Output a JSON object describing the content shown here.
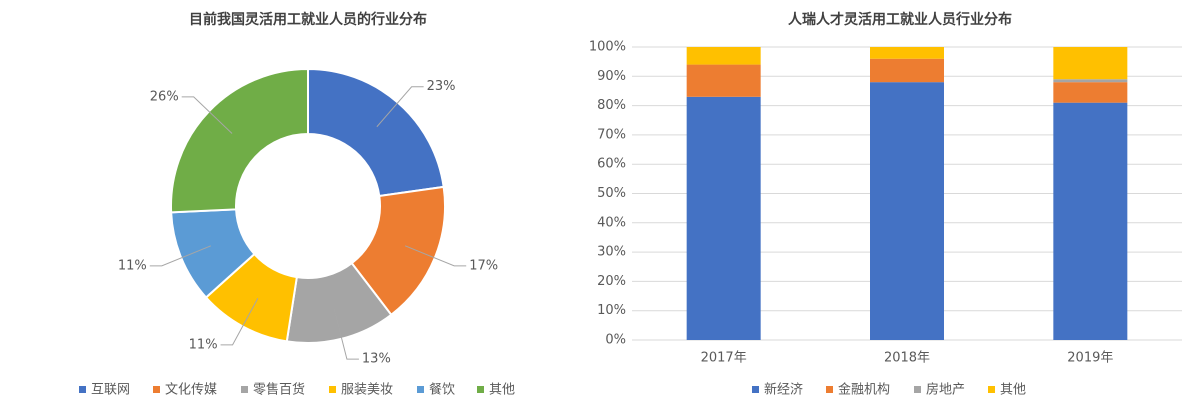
{
  "chart_data": [
    {
      "type": "pie",
      "title": "目前我国灵活用工就业人员的行业分布",
      "categories": [
        "互联网",
        "文化传媒",
        "零售百货",
        "服装美妆",
        "餐饮",
        "其他"
      ],
      "values": [
        23,
        17,
        13,
        11,
        11,
        26
      ],
      "value_labels": [
        "23%",
        "17%",
        "13%",
        "11%",
        "11%",
        "26%"
      ],
      "colors": [
        "#4472c4",
        "#ed7d31",
        "#a5a5a5",
        "#ffc000",
        "#5b9bd5",
        "#70ad47"
      ],
      "donut": true,
      "legend": "bottom"
    },
    {
      "type": "stacked-bar",
      "title": "人瑞人才灵活用工就业人员行业分布",
      "categories": [
        "2017年",
        "2018年",
        "2019年"
      ],
      "series": [
        {
          "name": "新经济",
          "color": "#4472c4",
          "values": [
            83,
            88,
            81
          ]
        },
        {
          "name": "金融机构",
          "color": "#ed7d31",
          "values": [
            11,
            8,
            7
          ]
        },
        {
          "name": "房地产",
          "color": "#a5a5a5",
          "values": [
            0,
            0,
            1
          ]
        },
        {
          "name": "其他",
          "color": "#ffc000",
          "values": [
            6,
            4,
            11
          ]
        }
      ],
      "ylim": [
        0,
        100
      ],
      "yticks": [
        {
          "value": 0,
          "label": "0%"
        },
        {
          "value": 10,
          "label": "10%"
        },
        {
          "value": 20,
          "label": "20%"
        },
        {
          "value": 30,
          "label": "30%"
        },
        {
          "value": 40,
          "label": "40%"
        },
        {
          "value": 50,
          "label": "50%"
        },
        {
          "value": 60,
          "label": "60%"
        },
        {
          "value": 70,
          "label": "70%"
        },
        {
          "value": 80,
          "label": "80%"
        },
        {
          "value": 90,
          "label": "90%"
        },
        {
          "value": 100,
          "label": "100%"
        }
      ],
      "grid": true,
      "legend": "bottom"
    }
  ]
}
